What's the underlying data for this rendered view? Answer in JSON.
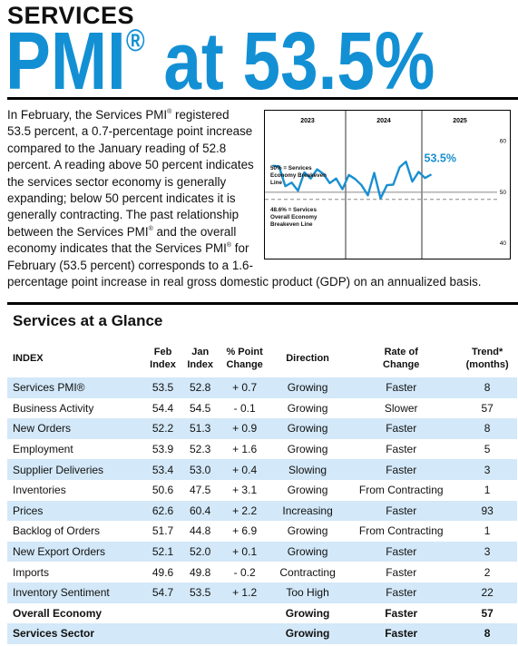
{
  "header": {
    "kicker": "SERVICES",
    "title_pmi": "PMI",
    "title_mark": "®",
    "title_rest": " at 53.5%"
  },
  "body": [
    "In February, the Services PMI",
    "®",
    " registered 53.5 percent, a 0.7-percentage point increase compared to the January reading of 52.8 percent. A reading above 50 percent indicates the services sector economy is generally expanding; below 50 percent indicates it is generally contracting. The past relationship between the Services PMI",
    "®",
    " and the overall economy indicates that the Services PMI",
    "®",
    " for February (53.5 percent) corresponds to a 1.6-percentage point increase in real gross domestic product (GDP) on an annualized basis."
  ],
  "chart_data": {
    "type": "line",
    "x_groups": [
      "2023",
      "2024",
      "2025"
    ],
    "categories": [
      null,
      null,
      null,
      null,
      null,
      null,
      null,
      null,
      null,
      null,
      null,
      null,
      null,
      null,
      null,
      null,
      null,
      null,
      null,
      null,
      null,
      null,
      null,
      null,
      null,
      null
    ],
    "values": [
      55.2,
      55.1,
      51.2,
      51.9,
      50.3,
      53.9,
      52.7,
      54.5,
      53.6,
      51.8,
      52.7,
      50.6,
      53.4,
      52.6,
      51.4,
      49.4,
      53.8,
      48.8,
      51.4,
      51.5,
      54.9,
      56.0,
      52.1,
      54.0,
      52.8,
      53.5
    ],
    "value_labels": [
      null,
      null,
      null,
      null,
      null,
      null,
      null,
      null,
      null,
      null,
      null,
      null,
      null,
      null,
      null,
      null,
      null,
      null,
      null,
      null,
      null,
      null,
      null,
      null,
      null,
      "53.5%"
    ],
    "color": "#1a8fd0",
    "ylim": [
      37,
      66
    ],
    "yticks": [
      40,
      50,
      60
    ],
    "reference_lines": [
      {
        "value": 50,
        "label": "50% = Services Economy Breakeven Line",
        "style": "solid"
      },
      {
        "value": 48.6,
        "label": "48.6% = Services Overall Economy Breakeven Line",
        "style": "dashed"
      }
    ]
  },
  "table": {
    "title": "Services at a Glance",
    "columns": [
      "INDEX",
      "Feb\nIndex",
      "Jan\nIndex",
      "% Point\nChange",
      "Direction",
      "Rate of\nChange",
      "Trend*\n(months)"
    ],
    "rows": [
      [
        "Services PMI®",
        "53.5",
        "52.8",
        "+ 0.7",
        "Growing",
        "Faster",
        "8"
      ],
      [
        "Business Activity",
        "54.4",
        "54.5",
        "- 0.1",
        "Growing",
        "Slower",
        "57"
      ],
      [
        "New Orders",
        "52.2",
        "51.3",
        "+ 0.9",
        "Growing",
        "Faster",
        "8"
      ],
      [
        "Employment",
        "53.9",
        "52.3",
        "+ 1.6",
        "Growing",
        "Faster",
        "5"
      ],
      [
        "Supplier Deliveries",
        "53.4",
        "53.0",
        "+ 0.4",
        "Slowing",
        "Faster",
        "3"
      ],
      [
        "Inventories",
        "50.6",
        "47.5",
        "+ 3.1",
        "Growing",
        "From Contracting",
        "1"
      ],
      [
        "Prices",
        "62.6",
        "60.4",
        "+ 2.2",
        "Increasing",
        "Faster",
        "93"
      ],
      [
        "Backlog of Orders",
        "51.7",
        "44.8",
        "+ 6.9",
        "Growing",
        "From Contracting",
        "1"
      ],
      [
        "New Export Orders",
        "52.1",
        "52.0",
        "+ 0.1",
        "Growing",
        "Faster",
        "3"
      ],
      [
        "Imports",
        "49.6",
        "49.8",
        "- 0.2",
        "Contracting",
        "Faster",
        "2"
      ],
      [
        "Inventory Sentiment",
        "54.7",
        "53.5",
        "+ 1.2",
        "Too High",
        "Faster",
        "22"
      ],
      [
        "Overall Economy",
        null,
        null,
        null,
        "Growing",
        "Faster",
        "57"
      ],
      [
        "Services Sector",
        null,
        null,
        null,
        "Growing",
        "Faster",
        "8"
      ]
    ]
  }
}
